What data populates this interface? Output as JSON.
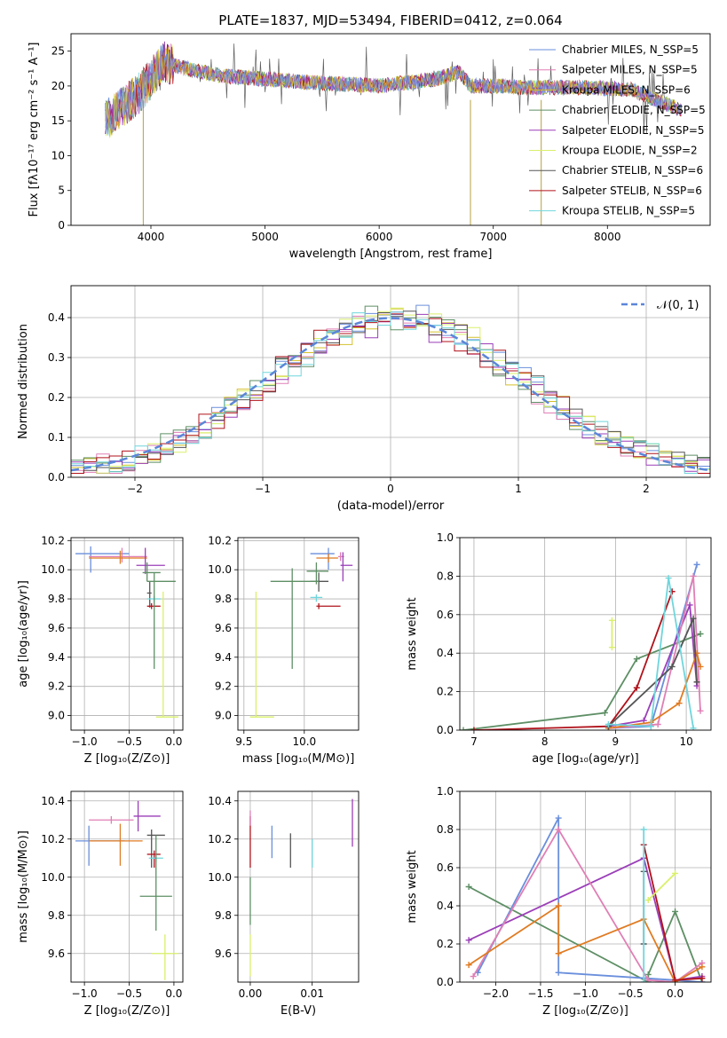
{
  "colors": {
    "cm": "#6a8fdc",
    "sm": "#e07fb5",
    "km": "#d4c02a",
    "ce": "#5e8f65",
    "se": "#9b3fb8",
    "ke": "#d9f06a",
    "cs": "#555555",
    "ss": "#b0121b",
    "ks": "#6fd6dc",
    "norm": "#5b86d8",
    "orange": "#e07b22",
    "grid": "#b0b0b0"
  },
  "chart_data": [
    {
      "type": "line",
      "title": "PLATE=1837, MJD=53494, FIBERID=0412, z=0.064",
      "xlabel": "wavelength [Angstrom, rest frame]",
      "ylabel": "Flux [fλ10⁻¹⁷ erg cm⁻² s⁻¹ A⁻¹]",
      "xlim": [
        3300,
        8900
      ],
      "ylim": [
        0,
        27.5
      ],
      "xticks": [
        "4000",
        "5000",
        "6000",
        "7000",
        "8000"
      ],
      "yticks": [
        "0",
        "5",
        "10",
        "15",
        "20",
        "25"
      ],
      "grid": false,
      "legend": "top-right",
      "continuum": [
        [
          3600,
          15
        ],
        [
          3750,
          17
        ],
        [
          3900,
          19
        ],
        [
          4000,
          21
        ],
        [
          4100,
          23.5
        ],
        [
          4300,
          22.5
        ],
        [
          4600,
          21.5
        ],
        [
          5000,
          21
        ],
        [
          5400,
          20.5
        ],
        [
          6000,
          20
        ],
        [
          6500,
          21
        ],
        [
          6700,
          22
        ],
        [
          6800,
          20
        ],
        [
          7000,
          20
        ],
        [
          7300,
          19.8
        ],
        [
          7800,
          19.8
        ],
        [
          8200,
          19.5
        ],
        [
          8500,
          17.5
        ],
        [
          8650,
          16.5
        ]
      ],
      "drops": [
        {
          "x": 3933,
          "y": 0
        },
        {
          "x": 6800,
          "y": 0
        },
        {
          "x": 7420,
          "y": 0
        }
      ],
      "series": [
        {
          "name": "Chabrier MILES, N_SSP=5",
          "color": "cm"
        },
        {
          "name": "Salpeter MILES, N_SSP=5",
          "color": "sm"
        },
        {
          "name": "Kroupa MILES, N_SSP=6",
          "color": "km"
        },
        {
          "name": "Chabrier ELODIE, N_SSP=5",
          "color": "ce"
        },
        {
          "name": "Salpeter ELODIE, N_SSP=5",
          "color": "se"
        },
        {
          "name": "Kroupa ELODIE, N_SSP=2",
          "color": "ke"
        },
        {
          "name": "Chabrier STELIB, N_SSP=6",
          "color": "cs"
        },
        {
          "name": "Salpeter STELIB, N_SSP=6",
          "color": "ss"
        },
        {
          "name": "Kroupa STELIB, N_SSP=5",
          "color": "ks"
        }
      ]
    },
    {
      "type": "histogram",
      "xlabel": "(data-model)/error",
      "ylabel": "Normed distribution",
      "xlim": [
        -2.5,
        2.5
      ],
      "ylim": [
        0,
        0.48
      ],
      "xticks": [
        "−2",
        "−1",
        "0",
        "1",
        "2"
      ],
      "yticks": [
        "0.0",
        "0.1",
        "0.2",
        "0.3",
        "0.4"
      ],
      "grid": true,
      "legend": "top-right",
      "series": [
        {
          "name": "𝒩(0, 1)",
          "type": "gaussian",
          "mean": 0,
          "sigma": 1
        }
      ],
      "bins": 50
    },
    {
      "type": "scatter",
      "xlabel": "Z [log₁₀(Z/Z⊙)]",
      "ylabel": "age  [log₁₀(age/yr)]",
      "xlim": [
        -1.15,
        0.1
      ],
      "ylim": [
        8.9,
        10.22
      ],
      "xticks": [
        "−1.0",
        "−0.5",
        "0.0"
      ],
      "yticks": [
        "9.0",
        "9.2",
        "9.4",
        "9.6",
        "9.8",
        "10.0",
        "10.2"
      ],
      "grid": true,
      "points": [
        {
          "c": "cm",
          "x": -0.93,
          "y": 10.11,
          "xe": [
            -1.1,
            -0.5
          ],
          "ye": [
            9.98,
            10.16
          ]
        },
        {
          "c": "sm",
          "x": -0.58,
          "y": 10.09,
          "xe": [
            -0.95,
            -0.3
          ],
          "ye": [
            10.05,
            10.15
          ]
        },
        {
          "c": "orange",
          "x": -0.6,
          "y": 10.08,
          "xe": [
            -0.95,
            -0.3
          ],
          "ye": [
            10.04,
            10.13
          ]
        },
        {
          "c": "se",
          "x": -0.32,
          "y": 10.03,
          "xe": [
            -0.42,
            -0.1
          ],
          "ye": [
            9.97,
            10.15
          ]
        },
        {
          "c": "ce",
          "x": -0.3,
          "y": 9.98,
          "xe": [
            -0.35,
            -0.15
          ],
          "ye": [
            9.92,
            10.05
          ]
        },
        {
          "c": "cs",
          "x": -0.27,
          "y": 9.84,
          "xe": [
            -0.3,
            -0.25
          ],
          "ye": [
            9.74,
            9.92
          ]
        },
        {
          "c": "ss",
          "x": -0.25,
          "y": 9.75,
          "xe": [
            -0.3,
            -0.15
          ],
          "ye": [
            9.73,
            9.77
          ]
        },
        {
          "c": "ks",
          "x": -0.22,
          "y": 9.8,
          "xe": [
            -0.3,
            -0.15
          ],
          "ye": [
            9.78,
            9.82
          ]
        },
        {
          "c": "ce",
          "x": -0.22,
          "y": 9.92,
          "xe": [
            -0.3,
            0.02
          ],
          "ye": [
            9.32,
            9.98
          ]
        },
        {
          "c": "ke",
          "x": -0.12,
          "y": 8.99,
          "xe": [
            -0.2,
            0.05
          ],
          "ye": [
            8.99,
            9.85
          ]
        }
      ]
    },
    {
      "type": "scatter",
      "xlabel": "mass [log₁₀(M/M⊙)]",
      "ylabel": "",
      "xlim": [
        9.45,
        10.45
      ],
      "ylim": [
        8.9,
        10.22
      ],
      "xticks": [
        "9.5",
        "10.0"
      ],
      "yticks": [
        "9.0",
        "9.2",
        "9.4",
        "9.6",
        "9.8",
        "10.0",
        "10.2"
      ],
      "grid": true,
      "points": [
        {
          "c": "cm",
          "x": 10.2,
          "y": 10.11,
          "xe": [
            10.05,
            10.25
          ],
          "ye": [
            10.0,
            10.15
          ]
        },
        {
          "c": "sm",
          "x": 10.3,
          "y": 10.09,
          "xe": [
            10.28,
            10.33
          ],
          "ye": [
            10.06,
            10.12
          ]
        },
        {
          "c": "orange",
          "x": 10.2,
          "y": 10.08,
          "xe": [
            10.1,
            10.28
          ],
          "ye": [
            10.05,
            10.11
          ]
        },
        {
          "c": "se",
          "x": 10.32,
          "y": 10.03,
          "xe": [
            10.3,
            10.4
          ],
          "ye": [
            9.92,
            10.12
          ]
        },
        {
          "c": "ce",
          "x": 10.1,
          "y": 9.99,
          "xe": [
            10.02,
            10.2
          ],
          "ye": [
            9.9,
            10.05
          ]
        },
        {
          "c": "cs",
          "x": 10.12,
          "y": 9.92,
          "xe": [
            10.05,
            10.2
          ],
          "ye": [
            9.85,
            9.98
          ]
        },
        {
          "c": "ss",
          "x": 10.12,
          "y": 9.75,
          "xe": [
            10.1,
            10.3
          ],
          "ye": [
            9.73,
            9.77
          ]
        },
        {
          "c": "ks",
          "x": 10.1,
          "y": 9.81,
          "xe": [
            10.05,
            10.15
          ],
          "ye": [
            9.78,
            9.83
          ]
        },
        {
          "c": "ce",
          "x": 9.9,
          "y": 9.92,
          "xe": [
            9.72,
            10.12
          ],
          "ye": [
            9.32,
            10.01
          ]
        },
        {
          "c": "ke",
          "x": 9.6,
          "y": 8.99,
          "xe": [
            9.55,
            9.75
          ],
          "ye": [
            8.99,
            9.85
          ]
        }
      ]
    },
    {
      "type": "line",
      "xlabel": "age  [log₁₀(age/yr)]",
      "ylabel": "mass weight",
      "xlim": [
        6.8,
        10.35
      ],
      "ylim": [
        0,
        1.0
      ],
      "xticks": [
        "7",
        "8",
        "9",
        "10"
      ],
      "yticks": [
        "0.0",
        "0.2",
        "0.4",
        "0.6",
        "0.8",
        "1.0"
      ],
      "grid": true,
      "series": [
        {
          "c": "ce",
          "x": [
            6.85,
            8.85,
            9.3,
            10.2
          ],
          "y": [
            0.0,
            0.09,
            0.37,
            0.5
          ]
        },
        {
          "c": "ss",
          "x": [
            7.0,
            8.9,
            9.3,
            9.8
          ],
          "y": [
            0.0,
            0.02,
            0.22,
            0.72
          ]
        },
        {
          "c": "cm",
          "x": [
            8.9,
            9.5,
            10.15
          ],
          "y": [
            0.01,
            0.02,
            0.86
          ]
        },
        {
          "c": "se",
          "x": [
            8.9,
            9.4,
            10.05,
            10.15
          ],
          "y": [
            0.02,
            0.05,
            0.65,
            0.23
          ]
        },
        {
          "c": "sm",
          "x": [
            8.9,
            9.6,
            10.1,
            10.2
          ],
          "y": [
            0.01,
            0.03,
            0.8,
            0.1
          ]
        },
        {
          "c": "orange",
          "x": [
            8.9,
            9.5,
            9.9,
            10.15,
            10.2
          ],
          "y": [
            0.01,
            0.04,
            0.14,
            0.4,
            0.33
          ]
        },
        {
          "c": "cs",
          "x": [
            8.9,
            9.8,
            10.1,
            10.15
          ],
          "y": [
            0.02,
            0.33,
            0.58,
            0.25
          ]
        },
        {
          "c": "ks",
          "x": [
            8.9,
            9.5,
            9.75,
            10.1
          ],
          "y": [
            0.03,
            0.02,
            0.79,
            0.01
          ]
        },
        {
          "c": "ke",
          "x": [
            8.95,
            8.95
          ],
          "y": [
            0.43,
            0.57
          ]
        }
      ]
    },
    {
      "type": "scatter",
      "xlabel": "Z [log₁₀(Z/Z⊙)]",
      "ylabel": "mass [log₁₀(M/M⊙)]",
      "xlim": [
        -1.15,
        0.1
      ],
      "ylim": [
        9.45,
        10.45
      ],
      "xticks": [
        "−1.0",
        "−0.5",
        "0.0"
      ],
      "yticks": [
        "9.6",
        "9.8",
        "10.0",
        "10.2",
        "10.4"
      ],
      "grid": true,
      "points": [
        {
          "c": "cm",
          "x": -0.95,
          "y": 10.19,
          "xe": [
            -1.1,
            -0.55
          ],
          "ye": [
            10.06,
            10.27
          ]
        },
        {
          "c": "sm",
          "x": -0.7,
          "y": 10.3,
          "xe": [
            -0.95,
            -0.45
          ],
          "ye": [
            10.28,
            10.32
          ]
        },
        {
          "c": "orange",
          "x": -0.6,
          "y": 10.19,
          "xe": [
            -0.95,
            -0.35
          ],
          "ye": [
            10.06,
            10.28
          ]
        },
        {
          "c": "se",
          "x": -0.4,
          "y": 10.32,
          "xe": [
            -0.45,
            -0.15
          ],
          "ye": [
            10.24,
            10.4
          ]
        },
        {
          "c": "cs",
          "x": -0.25,
          "y": 10.22,
          "xe": [
            -0.3,
            -0.1
          ],
          "ye": [
            10.05,
            10.25
          ]
        },
        {
          "c": "ss",
          "x": -0.22,
          "y": 10.12,
          "xe": [
            -0.3,
            -0.15
          ],
          "ye": [
            10.05,
            10.14
          ]
        },
        {
          "c": "ks",
          "x": -0.2,
          "y": 10.1,
          "xe": [
            -0.28,
            -0.12
          ],
          "ye": [
            10.08,
            10.12
          ]
        },
        {
          "c": "ce",
          "x": -0.2,
          "y": 9.9,
          "xe": [
            -0.38,
            -0.02
          ],
          "ye": [
            9.72,
            10.22
          ]
        },
        {
          "c": "ke",
          "x": -0.1,
          "y": 9.6,
          "xe": [
            -0.25,
            0.05
          ],
          "ye": [
            9.46,
            9.7
          ]
        }
      ]
    },
    {
      "type": "errorbar",
      "xlabel": "E(B-V)",
      "ylabel": "",
      "xlim": [
        -0.002,
        0.0175
      ],
      "ylim": [
        9.45,
        10.45
      ],
      "xticks": [
        "0.00",
        "0.01"
      ],
      "yticks": [
        "9.6",
        "9.8",
        "10.0",
        "10.2",
        "10.4"
      ],
      "grid": true,
      "points": [
        {
          "c": "ke",
          "x": 0.0,
          "y": 9.58,
          "ye": [
            9.48,
            9.7
          ]
        },
        {
          "c": "ce",
          "x": 0.0,
          "y": 9.88,
          "ye": [
            9.75,
            10.0
          ]
        },
        {
          "c": "ss",
          "x": 0.0,
          "y": 10.15,
          "ye": [
            10.05,
            10.32
          ]
        },
        {
          "c": "sm",
          "x": 0.0,
          "y": 10.3,
          "ye": [
            10.27,
            10.35
          ]
        },
        {
          "c": "cm",
          "x": 0.0035,
          "y": 10.19,
          "ye": [
            10.1,
            10.27
          ]
        },
        {
          "c": "cs",
          "x": 0.0065,
          "y": 10.16,
          "ye": [
            10.05,
            10.23
          ]
        },
        {
          "c": "ks",
          "x": 0.01,
          "y": 10.14,
          "ye": [
            10.05,
            10.2
          ]
        },
        {
          "c": "se",
          "x": 0.0165,
          "y": 10.28,
          "ye": [
            10.16,
            10.41
          ]
        }
      ]
    },
    {
      "type": "line",
      "xlabel": "Z [log₁₀(Z/Z⊙)]",
      "ylabel": "mass weight",
      "xlim": [
        -2.4,
        0.4
      ],
      "ylim": [
        0,
        1.0
      ],
      "xticks": [
        "−2.0",
        "−1.5",
        "−1.0",
        "−0.5",
        "0.0"
      ],
      "yticks": [
        "0.0",
        "0.2",
        "0.4",
        "0.6",
        "0.8",
        "1.0"
      ],
      "grid": true,
      "series": [
        {
          "c": "ce",
          "x": [
            -2.3,
            -0.3,
            -0.3,
            0.0,
            0.3
          ],
          "y": [
            0.5,
            0.0,
            0.04,
            0.37,
            0.0
          ]
        },
        {
          "c": "se",
          "x": [
            -2.3,
            -0.35,
            0.0,
            0.3
          ],
          "y": [
            0.22,
            0.65,
            0.01,
            0.03
          ]
        },
        {
          "c": "cm",
          "x": [
            -2.2,
            -1.3,
            -1.3,
            0.0,
            0.3
          ],
          "y": [
            0.05,
            0.86,
            0.05,
            0.01,
            0.0
          ]
        },
        {
          "c": "sm",
          "x": [
            -2.25,
            -1.3,
            -0.3,
            0.0,
            0.3
          ],
          "y": [
            0.03,
            0.8,
            0.01,
            0.0,
            0.1
          ]
        },
        {
          "c": "orange",
          "x": [
            -2.3,
            -1.3,
            -1.3,
            -0.35,
            0.0,
            0.3
          ],
          "y": [
            0.09,
            0.4,
            0.15,
            0.33,
            0.0,
            0.08
          ]
        },
        {
          "c": "cs",
          "x": [
            -0.35,
            -0.35
          ],
          "y": [
            0.2,
            0.58
          ]
        },
        {
          "c": "ss",
          "x": [
            -0.35,
            0.0,
            0.3
          ],
          "y": [
            0.72,
            0.01,
            0.02
          ]
        },
        {
          "c": "ks",
          "x": [
            -0.35,
            -0.35
          ],
          "y": [
            0.0,
            0.8
          ]
        },
        {
          "c": "ke",
          "x": [
            -0.3,
            0.0
          ],
          "y": [
            0.43,
            0.57
          ]
        }
      ]
    }
  ]
}
